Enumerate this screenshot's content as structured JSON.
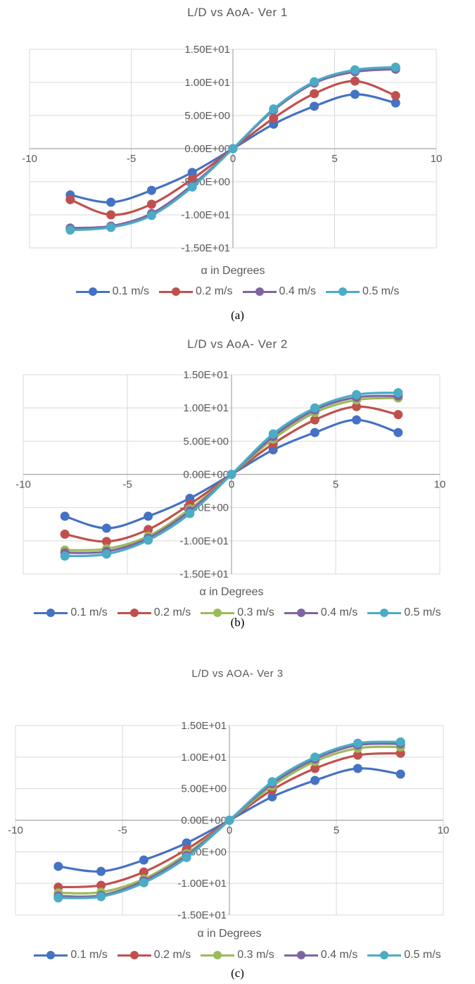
{
  "chart_data": [
    {
      "type": "line",
      "title": "L/D vs AoA- Ver 1",
      "xlabel": "α in Degrees",
      "ylabel": "",
      "xlim": [
        -10,
        10
      ],
      "ylim": [
        -15,
        15
      ],
      "x_ticks": [
        "-10",
        "-5",
        "0",
        "5",
        "10"
      ],
      "y_ticks": [
        "1.50E+01",
        "1.00E+01",
        "5.00E+00",
        "0.00E+00",
        "-5.00E+00",
        "-1.00E+01",
        "-1.50E+01"
      ],
      "grid": true,
      "legend": "bottom",
      "caption": "(a)",
      "x": [
        -8,
        -6,
        -4,
        -2,
        0,
        2,
        4,
        6,
        8
      ],
      "series": [
        {
          "name": "0.1 m/s",
          "color": "#4472C4",
          "values": [
            -7.0,
            -8.1,
            -6.3,
            -3.6,
            0,
            3.7,
            6.4,
            8.2,
            6.9
          ]
        },
        {
          "name": "0.2 m/s",
          "color": "#C0504D",
          "values": [
            -7.7,
            -10.0,
            -8.4,
            -4.6,
            0,
            4.6,
            8.3,
            10.2,
            8.0
          ]
        },
        {
          "name": "0.4 m/s",
          "color": "#8064A2",
          "values": [
            -12.0,
            -11.7,
            -9.8,
            -5.5,
            0,
            5.8,
            9.9,
            11.6,
            12.0
          ]
        },
        {
          "name": "0.5 m/s",
          "color": "#4BACC6",
          "values": [
            -12.3,
            -11.9,
            -10.1,
            -5.8,
            0,
            6.0,
            10.1,
            11.9,
            12.3
          ]
        }
      ]
    },
    {
      "type": "line",
      "title": "L/D vs AoA- Ver 2",
      "xlabel": "α in Degrees",
      "ylabel": "",
      "xlim": [
        -10,
        10
      ],
      "ylim": [
        -15,
        15
      ],
      "x_ticks": [
        "-10",
        "-5",
        "0",
        "5",
        "10"
      ],
      "y_ticks": [
        "1.50E+01",
        "1.00E+01",
        "5.00E+00",
        "0.00E+00",
        "-5.00E+00",
        "-1.00E+01",
        "-1.50E+01"
      ],
      "grid": true,
      "legend": "bottom",
      "caption": "(b)",
      "x": [
        -8,
        -6,
        -4,
        -2,
        0,
        2,
        4,
        6,
        8
      ],
      "series": [
        {
          "name": "0.1 m/s",
          "color": "#4472C4",
          "values": [
            -6.3,
            -8.1,
            -6.3,
            -3.6,
            0,
            3.7,
            6.3,
            8.2,
            6.3
          ]
        },
        {
          "name": "0.2 m/s",
          "color": "#C0504D",
          "values": [
            -9.0,
            -10.1,
            -8.3,
            -4.5,
            0,
            4.6,
            8.2,
            10.2,
            9.0
          ]
        },
        {
          "name": "0.3 m/s",
          "color": "#9BBB59",
          "values": [
            -11.4,
            -11.2,
            -9.3,
            -5.2,
            0,
            5.3,
            9.3,
            11.2,
            11.5
          ]
        },
        {
          "name": "0.4 m/s",
          "color": "#8064A2",
          "values": [
            -11.8,
            -11.6,
            -9.6,
            -5.5,
            0,
            5.7,
            9.7,
            11.6,
            11.8
          ]
        },
        {
          "name": "0.5 m/s",
          "color": "#4BACC6",
          "values": [
            -12.3,
            -12.0,
            -9.9,
            -5.9,
            0,
            6.1,
            10.0,
            12.0,
            12.3
          ]
        }
      ]
    },
    {
      "type": "line",
      "title": "L/D vs AOA- Ver 3",
      "xlabel": "α in Degrees",
      "ylabel": "",
      "xlim": [
        -10,
        10
      ],
      "ylim": [
        -15,
        15
      ],
      "x_ticks": [
        "-10",
        "-5",
        "0",
        "5",
        "10"
      ],
      "y_ticks": [
        "1.50E+01",
        "1.00E+01",
        "5.00E+00",
        "0.00E+00",
        "-5.00E+00",
        "-1.00E+01",
        "-1.50E+01"
      ],
      "grid": true,
      "legend": "bottom",
      "caption": "(c)",
      "x": [
        -8,
        -6,
        -4,
        -2,
        0,
        2,
        4,
        6,
        8
      ],
      "series": [
        {
          "name": "0.1 m/s",
          "color": "#4472C4",
          "values": [
            -7.3,
            -8.1,
            -6.3,
            -3.6,
            0,
            3.7,
            6.3,
            8.2,
            7.3
          ]
        },
        {
          "name": "0.2 m/s",
          "color": "#C0504D",
          "values": [
            -10.6,
            -10.3,
            -8.2,
            -4.6,
            0,
            4.8,
            8.2,
            10.3,
            10.6
          ]
        },
        {
          "name": "0.3 m/s",
          "color": "#9BBB59",
          "values": [
            -11.5,
            -11.4,
            -9.3,
            -5.3,
            0,
            5.4,
            9.3,
            11.4,
            11.6
          ]
        },
        {
          "name": "0.4 m/s",
          "color": "#8064A2",
          "values": [
            -12.0,
            -11.9,
            -9.6,
            -5.6,
            0,
            5.8,
            9.7,
            11.9,
            12.1
          ]
        },
        {
          "name": "0.5 m/s",
          "color": "#4BACC6",
          "values": [
            -12.3,
            -12.1,
            -9.9,
            -5.9,
            0,
            6.1,
            10.0,
            12.2,
            12.4
          ]
        }
      ]
    }
  ]
}
